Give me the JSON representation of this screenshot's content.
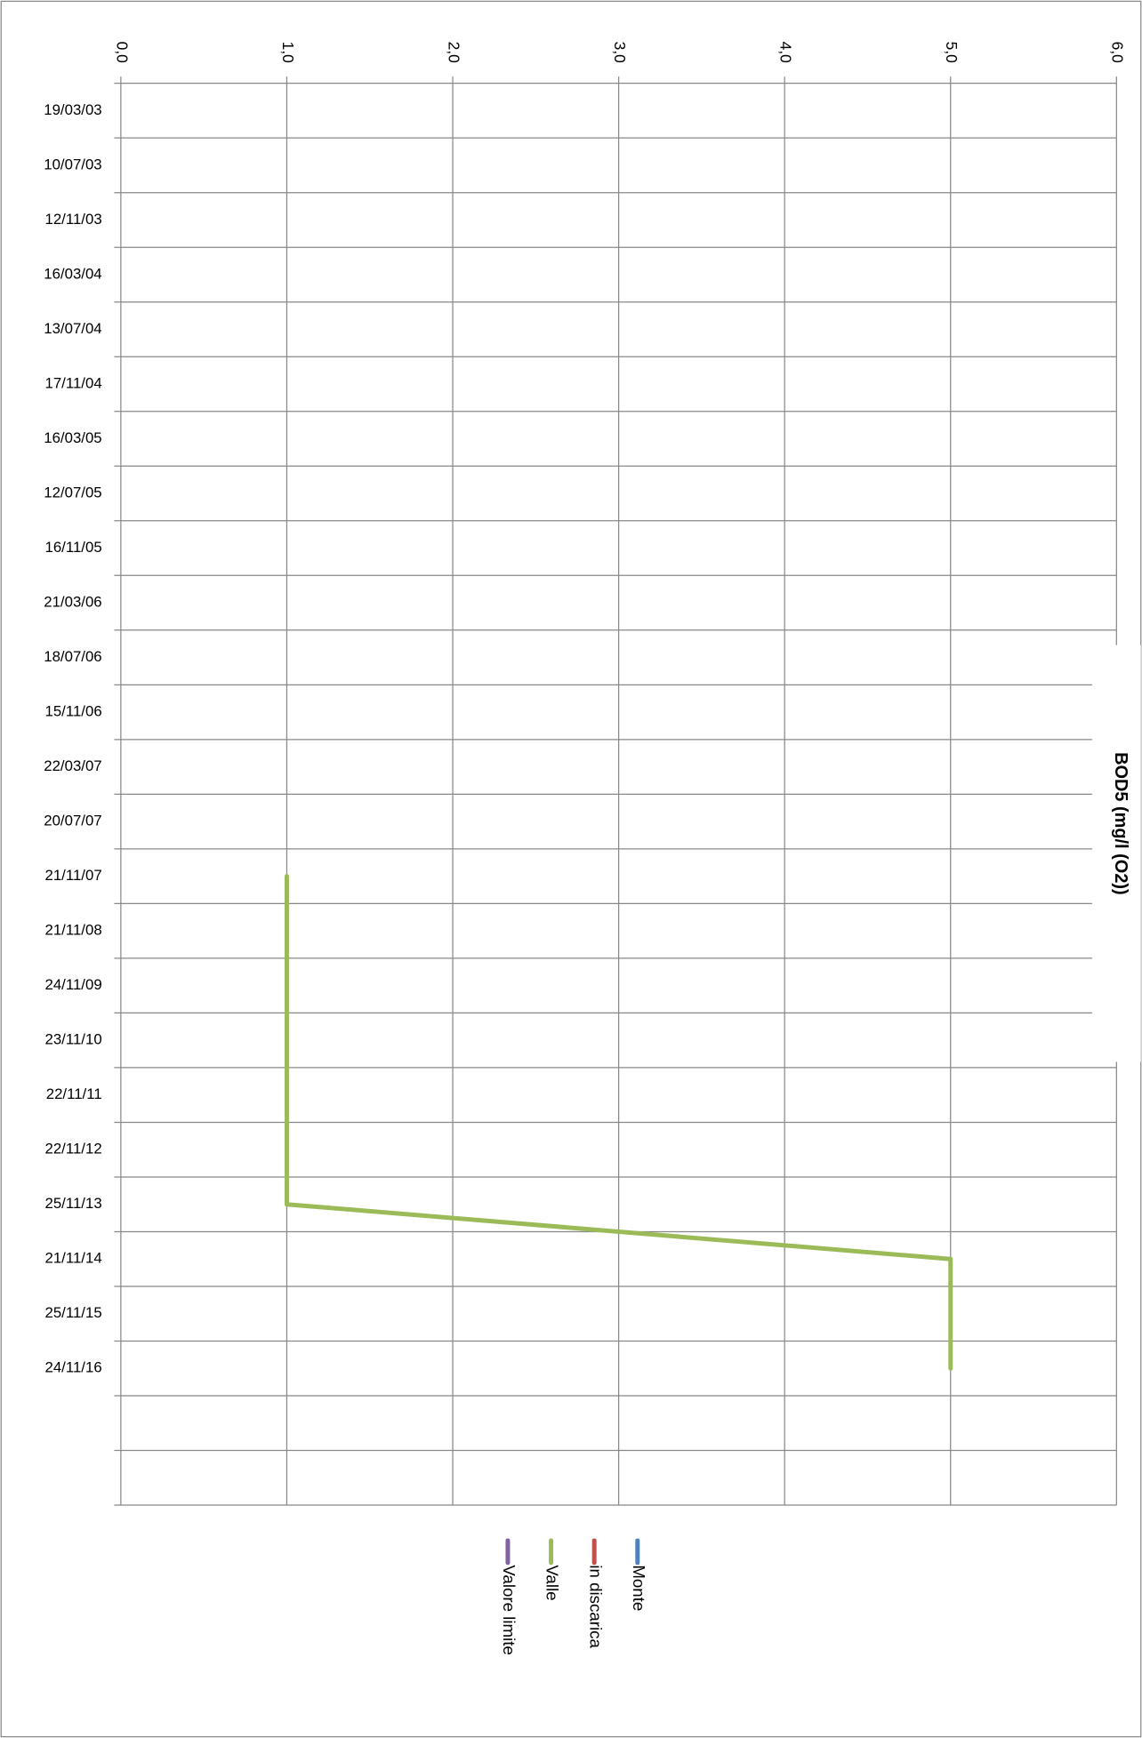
{
  "chart_data": {
    "type": "line",
    "orientation": "rotated",
    "axis_title": "BOD5 (mg/l (O2))",
    "categories": [
      "19/03/03",
      "10/07/03",
      "12/11/03",
      "16/03/04",
      "13/07/04",
      "17/11/04",
      "16/03/05",
      "12/07/05",
      "16/11/05",
      "21/03/06",
      "18/07/06",
      "15/11/06",
      "22/03/07",
      "20/07/07",
      "21/11/07",
      "21/11/08",
      "24/11/09",
      "23/11/10",
      "22/11/11",
      "22/11/12",
      "25/11/13",
      "21/11/14",
      "25/11/15",
      "24/11/16",
      null,
      null
    ],
    "series": [
      {
        "name": "Monte",
        "color": "#4f81bd",
        "values": [
          null,
          null,
          null,
          null,
          null,
          null,
          null,
          null,
          null,
          null,
          null,
          null,
          null,
          null,
          null,
          null,
          null,
          null,
          null,
          null,
          null,
          null,
          null,
          null,
          null,
          null
        ]
      },
      {
        "name": "in discarica",
        "color": "#c0504d",
        "values": [
          null,
          null,
          null,
          null,
          null,
          null,
          null,
          null,
          null,
          null,
          null,
          null,
          null,
          null,
          null,
          null,
          null,
          null,
          null,
          null,
          null,
          null,
          null,
          null,
          null,
          null
        ]
      },
      {
        "name": "Valle",
        "color": "#9bbb59",
        "values": [
          null,
          null,
          null,
          null,
          null,
          null,
          null,
          null,
          null,
          null,
          null,
          null,
          null,
          null,
          1,
          1,
          1,
          1,
          1,
          1,
          1,
          5,
          5,
          5,
          null,
          null
        ]
      },
      {
        "name": "Valore limite",
        "color": "#8064a2",
        "values": [
          null,
          null,
          null,
          null,
          null,
          null,
          null,
          null,
          null,
          null,
          null,
          null,
          null,
          null,
          null,
          null,
          null,
          null,
          null,
          null,
          null,
          null,
          null,
          null,
          null,
          null
        ]
      }
    ],
    "ylim": [
      0,
      6
    ],
    "yticks": [
      {
        "value": 0,
        "label": "0,0"
      },
      {
        "value": 1,
        "label": "1,0"
      },
      {
        "value": 2,
        "label": "2,0"
      },
      {
        "value": 3,
        "label": "3,0"
      },
      {
        "value": 4,
        "label": "4,0"
      },
      {
        "value": 5,
        "label": "5,0"
      },
      {
        "value": 6,
        "label": "6,0"
      }
    ],
    "grid": true
  }
}
